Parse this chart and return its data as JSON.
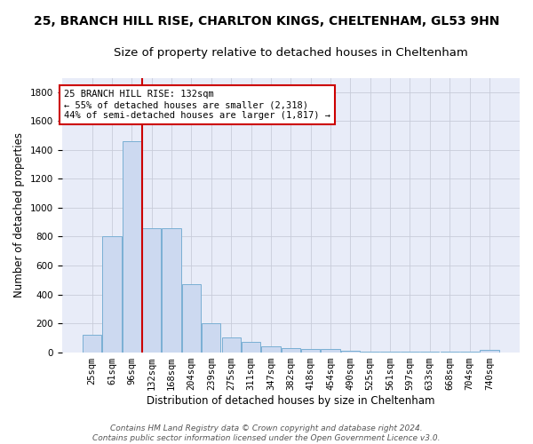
{
  "title": "25, BRANCH HILL RISE, CHARLTON KINGS, CHELTENHAM, GL53 9HN",
  "subtitle": "Size of property relative to detached houses in Cheltenham",
  "xlabel": "Distribution of detached houses by size in Cheltenham",
  "ylabel": "Number of detached properties",
  "footnote": "Contains HM Land Registry data © Crown copyright and database right 2024.\nContains public sector information licensed under the Open Government Licence v3.0.",
  "bin_labels": [
    "25sqm",
    "61sqm",
    "96sqm",
    "132sqm",
    "168sqm",
    "204sqm",
    "239sqm",
    "275sqm",
    "311sqm",
    "347sqm",
    "382sqm",
    "418sqm",
    "454sqm",
    "490sqm",
    "525sqm",
    "561sqm",
    "597sqm",
    "633sqm",
    "668sqm",
    "704sqm",
    "740sqm"
  ],
  "bar_heights": [
    120,
    800,
    1460,
    860,
    860,
    470,
    200,
    100,
    70,
    40,
    30,
    20,
    20,
    10,
    5,
    5,
    5,
    5,
    5,
    5,
    15
  ],
  "bar_color": "#ccd9f0",
  "bar_edgecolor": "#7aafd4",
  "vline_x_index": 3,
  "vline_color": "#cc0000",
  "annotation_text": "25 BRANCH HILL RISE: 132sqm\n← 55% of detached houses are smaller (2,318)\n44% of semi-detached houses are larger (1,817) →",
  "annotation_boxcolor": "white",
  "annotation_boxedgecolor": "#cc0000",
  "ylim": [
    0,
    1900
  ],
  "yticks": [
    0,
    200,
    400,
    600,
    800,
    1000,
    1200,
    1400,
    1600,
    1800
  ],
  "bg_color": "#e8ecf8",
  "title_fontsize": 10,
  "subtitle_fontsize": 9.5,
  "label_fontsize": 8.5,
  "tick_fontsize": 7.5,
  "annotation_fontsize": 7.5,
  "footnote_fontsize": 6.5
}
